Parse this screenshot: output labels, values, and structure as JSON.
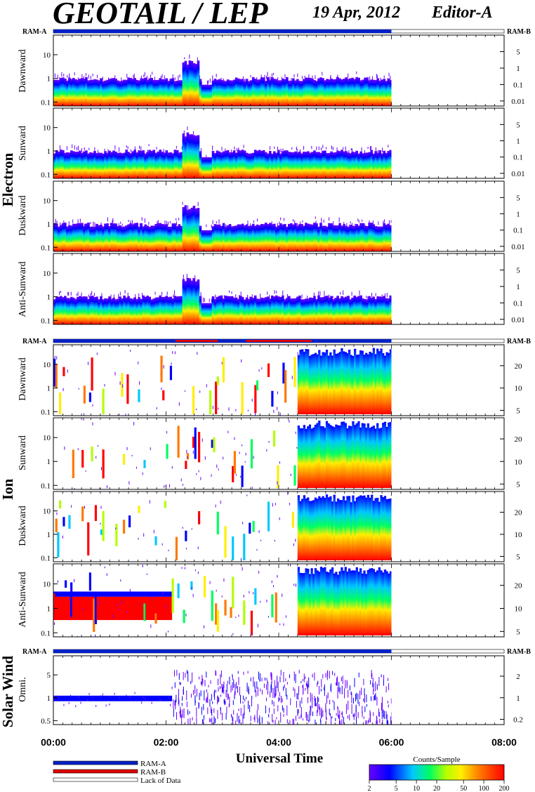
{
  "header": {
    "title": "GEOTAIL / LEP",
    "date": "19 Apr, 2012",
    "editor": "Editor-A"
  },
  "colors": {
    "ram_a": "#0020c8",
    "ram_b": "#e00000",
    "lack_of_data": "#ffffff",
    "colorbar_stops": [
      "#6a00ff",
      "#0000ff",
      "#00c8ff",
      "#00ff60",
      "#b4ff00",
      "#ffee00",
      "#ff7800",
      "#ff0000"
    ]
  },
  "groups": {
    "electron": "Electron",
    "ion": "Ion",
    "solar_wind": "Solar Wind"
  },
  "ram_labels": {
    "left": "RAM-A",
    "right": "RAM-B"
  },
  "panel_labels": {
    "e_dawn": "Dawnward",
    "e_sun": "Sunward",
    "e_dusk": "Duskward",
    "e_anti": "Anti-Sunward",
    "i_dawn": "Dawnward",
    "i_sun": "Sunward",
    "i_dusk": "Duskward",
    "i_anti": "Anti-Sunward",
    "sw_omni": "Omni."
  },
  "xaxis": {
    "label": "Universal Time",
    "ticks": [
      "00:00",
      "02:00",
      "04:00",
      "06:00",
      "08:00"
    ]
  },
  "legend": {
    "ram_a": "RAM-A",
    "ram_b": "RAM-B",
    "lack": "Lack of Data",
    "colorbar_title": "Counts/Sample",
    "colorbar_ticks": [
      "2",
      "5",
      "10",
      "20",
      "50",
      "100",
      "200"
    ]
  },
  "chart_data": {
    "type": "heatmap",
    "title": "GEOTAIL / LEP",
    "xlabel": "Universal Time",
    "xlim": [
      "00:00",
      "08:00"
    ],
    "data_coverage_ut": [
      "00:00",
      "06:00"
    ],
    "colorscale": {
      "label": "Counts/Sample",
      "min": 2,
      "max": 200,
      "log": true
    },
    "ram_bar": {
      "electron": {
        "ram_a": [
          [
            "00:00",
            "06:00"
          ]
        ],
        "ram_b": []
      },
      "ion": {
        "ram_a": [
          [
            "00:00",
            "06:00"
          ]
        ],
        "ram_b": [
          [
            "02:10",
            "02:55"
          ],
          [
            "03:25",
            "04:35"
          ]
        ]
      },
      "solar_wind": {
        "ram_a": [
          [
            "00:00",
            "06:00"
          ]
        ],
        "ram_b": []
      }
    },
    "panels": [
      {
        "group": "Electron",
        "name": "Dawnward",
        "y_left_ticks": [
          "0.1",
          "1",
          "10"
        ],
        "y_right_ticks": [
          "0.01",
          "0.1",
          "1",
          "5"
        ]
      },
      {
        "group": "Electron",
        "name": "Sunward",
        "y_left_ticks": [
          "0.1",
          "1",
          "10"
        ],
        "y_right_ticks": [
          "0.01",
          "0.1",
          "1",
          "5"
        ]
      },
      {
        "group": "Electron",
        "name": "Duskward",
        "y_left_ticks": [
          "0.1",
          "1",
          "10"
        ],
        "y_right_ticks": [
          "0.01",
          "0.1",
          "1",
          "5"
        ]
      },
      {
        "group": "Electron",
        "name": "Anti-Sunward",
        "y_left_ticks": [
          "0.1",
          "1",
          "10"
        ],
        "y_right_ticks": [
          "0.01",
          "0.1",
          "1",
          "5"
        ]
      },
      {
        "group": "Ion",
        "name": "Dawnward",
        "y_left_ticks": [
          "0.1",
          "1",
          "10"
        ],
        "y_right_ticks": [
          "5",
          "10",
          "20"
        ]
      },
      {
        "group": "Ion",
        "name": "Sunward",
        "y_left_ticks": [
          "0.1",
          "1",
          "10"
        ],
        "y_right_ticks": [
          "5",
          "10",
          "20"
        ]
      },
      {
        "group": "Ion",
        "name": "Duskward",
        "y_left_ticks": [
          "0.1",
          "1",
          "10"
        ],
        "y_right_ticks": [
          "5",
          "10",
          "20"
        ]
      },
      {
        "group": "Ion",
        "name": "Anti-Sunward",
        "y_left_ticks": [
          "0.1",
          "1",
          "10"
        ],
        "y_right_ticks": [
          "5",
          "10",
          "20"
        ]
      },
      {
        "group": "Solar Wind",
        "name": "Omni.",
        "y_left_ticks": [
          "0.5",
          "1",
          "5"
        ],
        "y_right_ticks": [
          "0.2",
          "1",
          "2"
        ]
      }
    ]
  }
}
